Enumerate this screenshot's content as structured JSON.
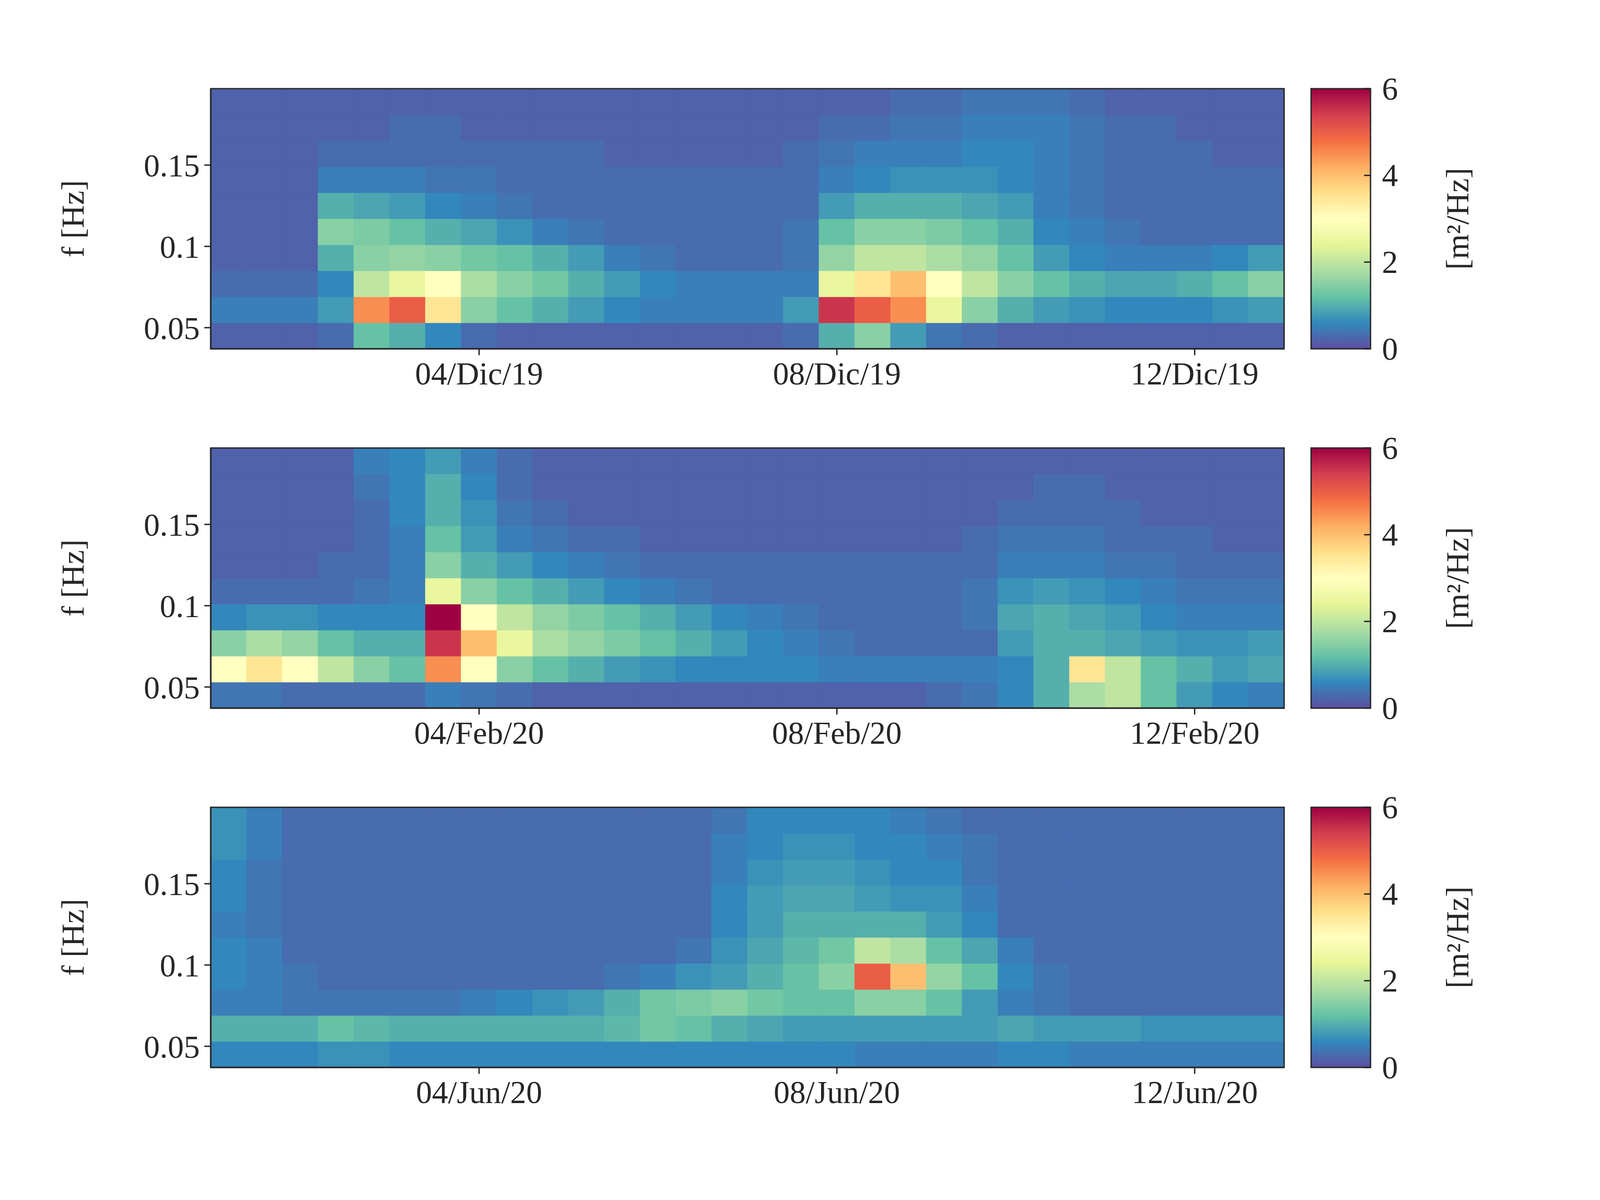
{
  "chart_data": [
    {
      "type": "heatmap",
      "y_label": "f [Hz]",
      "xlim": [
        1,
        13
      ],
      "xticks": [
        {
          "value": 4,
          "label": "04/Dic/19"
        },
        {
          "value": 8,
          "label": "08/Dic/19"
        },
        {
          "value": 12,
          "label": "12/Dic/19"
        }
      ],
      "ylim": [
        0.037,
        0.197
      ],
      "yticks": [
        0.05,
        0.1,
        0.15
      ],
      "x_edges": [
        1,
        1.4,
        1.8,
        2.2,
        2.6,
        3,
        3.4,
        3.8,
        4.2,
        4.6,
        5,
        5.4,
        5.8,
        6.2,
        6.6,
        7,
        7.4,
        7.8,
        8.2,
        8.6,
        9,
        9.4,
        9.8,
        10.2,
        10.6,
        11,
        11.4,
        11.8,
        12.2,
        12.6,
        13
      ],
      "y_edges": [
        0.037,
        0.053,
        0.069,
        0.085,
        0.101,
        0.117,
        0.133,
        0.149,
        0.165,
        0.181,
        0.197
      ],
      "z": [
        [
          0.2,
          0.2,
          0.2,
          0.3,
          1.2,
          1.0,
          0.6,
          0.3,
          0.2,
          0.2,
          0.2,
          0.2,
          0.2,
          0.2,
          0.2,
          0.2,
          0.3,
          1.0,
          1.5,
          0.8,
          0.4,
          0.3,
          0.2,
          0.2,
          0.2,
          0.2,
          0.2,
          0.2,
          0.2,
          0.2
        ],
        [
          0.5,
          0.5,
          0.5,
          0.8,
          4.5,
          5.0,
          3.5,
          1.5,
          1.2,
          1.0,
          0.8,
          0.6,
          0.5,
          0.5,
          0.5,
          0.5,
          0.8,
          5.5,
          5.0,
          4.5,
          2.5,
          1.5,
          1.0,
          0.8,
          0.7,
          0.6,
          0.6,
          0.6,
          0.7,
          0.8
        ],
        [
          0.3,
          0.3,
          0.3,
          0.6,
          2.0,
          2.5,
          3.0,
          1.8,
          1.5,
          1.3,
          1.0,
          0.8,
          0.6,
          0.5,
          0.5,
          0.5,
          0.5,
          2.5,
          3.5,
          4.0,
          3.0,
          2.0,
          1.5,
          1.2,
          1.0,
          0.9,
          0.9,
          1.0,
          1.2,
          1.5
        ],
        [
          0.2,
          0.2,
          0.2,
          1.0,
          1.5,
          1.6,
          1.5,
          1.3,
          1.2,
          1.0,
          0.8,
          0.5,
          0.4,
          0.3,
          0.3,
          0.3,
          0.4,
          1.6,
          2.0,
          2.0,
          1.8,
          1.6,
          1.2,
          0.8,
          0.6,
          0.5,
          0.5,
          0.5,
          0.6,
          0.8
        ],
        [
          0.2,
          0.2,
          0.2,
          1.5,
          1.4,
          1.2,
          1.0,
          0.9,
          0.7,
          0.5,
          0.4,
          0.3,
          0.3,
          0.3,
          0.3,
          0.3,
          0.4,
          1.2,
          1.5,
          1.5,
          1.4,
          1.2,
          1.0,
          0.6,
          0.5,
          0.4,
          0.3,
          0.3,
          0.3,
          0.3
        ],
        [
          0.2,
          0.2,
          0.2,
          1.0,
          0.9,
          0.8,
          0.6,
          0.5,
          0.4,
          0.3,
          0.3,
          0.3,
          0.3,
          0.3,
          0.3,
          0.3,
          0.3,
          0.8,
          1.0,
          1.0,
          1.0,
          0.9,
          0.8,
          0.5,
          0.4,
          0.3,
          0.3,
          0.3,
          0.3,
          0.3
        ],
        [
          0.2,
          0.2,
          0.2,
          0.5,
          0.5,
          0.5,
          0.4,
          0.4,
          0.3,
          0.3,
          0.3,
          0.3,
          0.3,
          0.3,
          0.3,
          0.3,
          0.3,
          0.5,
          0.6,
          0.7,
          0.7,
          0.7,
          0.6,
          0.5,
          0.4,
          0.3,
          0.3,
          0.3,
          0.3,
          0.3
        ],
        [
          0.2,
          0.2,
          0.2,
          0.3,
          0.3,
          0.3,
          0.3,
          0.3,
          0.3,
          0.3,
          0.3,
          0.2,
          0.2,
          0.2,
          0.2,
          0.2,
          0.3,
          0.4,
          0.5,
          0.5,
          0.5,
          0.6,
          0.6,
          0.5,
          0.4,
          0.3,
          0.3,
          0.3,
          0.2,
          0.2
        ],
        [
          0.2,
          0.2,
          0.2,
          0.2,
          0.2,
          0.3,
          0.3,
          0.2,
          0.2,
          0.2,
          0.2,
          0.2,
          0.2,
          0.2,
          0.2,
          0.2,
          0.2,
          0.3,
          0.3,
          0.4,
          0.4,
          0.5,
          0.5,
          0.5,
          0.4,
          0.3,
          0.3,
          0.2,
          0.2,
          0.2
        ],
        [
          0.2,
          0.2,
          0.2,
          0.2,
          0.2,
          0.2,
          0.2,
          0.2,
          0.2,
          0.2,
          0.2,
          0.2,
          0.2,
          0.2,
          0.2,
          0.2,
          0.2,
          0.2,
          0.2,
          0.3,
          0.3,
          0.4,
          0.4,
          0.4,
          0.3,
          0.2,
          0.2,
          0.2,
          0.2,
          0.2
        ]
      ],
      "colorbar": {
        "range": [
          0,
          6
        ],
        "ticks": [
          0,
          2,
          4,
          6
        ],
        "label": "[m²/Hz]",
        "colors": [
          "#5e4fa2",
          "#3288bd",
          "#66c2a5",
          "#abdda4",
          "#e6f598",
          "#ffffbf",
          "#fee08b",
          "#fdae61",
          "#f46d43",
          "#d53e4f",
          "#9e0142"
        ]
      }
    },
    {
      "type": "heatmap",
      "y_label": "f [Hz]",
      "xlim": [
        1,
        13
      ],
      "xticks": [
        {
          "value": 4,
          "label": "04/Feb/20"
        },
        {
          "value": 8,
          "label": "08/Feb/20"
        },
        {
          "value": 12,
          "label": "12/Feb/20"
        }
      ],
      "ylim": [
        0.037,
        0.197
      ],
      "yticks": [
        0.05,
        0.1,
        0.15
      ],
      "x_edges": [
        1,
        1.4,
        1.8,
        2.2,
        2.6,
        3,
        3.4,
        3.8,
        4.2,
        4.6,
        5,
        5.4,
        5.8,
        6.2,
        6.6,
        7,
        7.4,
        7.8,
        8.2,
        8.6,
        9,
        9.4,
        9.8,
        10.2,
        10.6,
        11,
        11.4,
        11.8,
        12.2,
        12.6,
        13
      ],
      "y_edges": [
        0.037,
        0.053,
        0.069,
        0.085,
        0.101,
        0.117,
        0.133,
        0.149,
        0.165,
        0.181,
        0.197
      ],
      "z": [
        [
          0.4,
          0.4,
          0.3,
          0.3,
          0.3,
          0.3,
          0.5,
          0.4,
          0.3,
          0.2,
          0.2,
          0.2,
          0.2,
          0.2,
          0.2,
          0.2,
          0.2,
          0.2,
          0.2,
          0.2,
          0.3,
          0.4,
          0.6,
          1.0,
          1.8,
          2.0,
          1.2,
          0.8,
          0.6,
          0.5
        ],
        [
          3.0,
          3.5,
          3.0,
          2.0,
          1.5,
          1.2,
          4.5,
          3.0,
          1.5,
          1.2,
          1.0,
          0.8,
          0.7,
          0.6,
          0.6,
          0.6,
          0.6,
          0.5,
          0.5,
          0.5,
          0.5,
          0.5,
          0.6,
          1.0,
          3.5,
          2.0,
          1.2,
          1.0,
          0.8,
          0.9
        ],
        [
          1.5,
          1.8,
          1.6,
          1.2,
          1.0,
          1.0,
          5.5,
          4.0,
          2.5,
          1.8,
          1.6,
          1.4,
          1.2,
          1.0,
          0.8,
          0.6,
          0.5,
          0.4,
          0.3,
          0.3,
          0.3,
          0.3,
          0.8,
          1.0,
          1.0,
          0.9,
          0.8,
          0.7,
          0.7,
          0.8
        ],
        [
          0.6,
          0.7,
          0.7,
          0.6,
          0.6,
          0.6,
          6.0,
          3.0,
          2.0,
          1.6,
          1.4,
          1.2,
          1.0,
          0.8,
          0.6,
          0.5,
          0.4,
          0.3,
          0.3,
          0.3,
          0.3,
          0.4,
          0.9,
          1.0,
          0.9,
          0.8,
          0.6,
          0.5,
          0.5,
          0.5
        ],
        [
          0.3,
          0.3,
          0.3,
          0.3,
          0.4,
          0.5,
          2.5,
          1.5,
          1.2,
          1.0,
          0.8,
          0.6,
          0.5,
          0.4,
          0.3,
          0.3,
          0.3,
          0.3,
          0.3,
          0.3,
          0.3,
          0.4,
          0.7,
          0.8,
          0.7,
          0.6,
          0.5,
          0.4,
          0.4,
          0.4
        ],
        [
          0.2,
          0.2,
          0.2,
          0.3,
          0.3,
          0.5,
          1.5,
          1.0,
          0.8,
          0.6,
          0.5,
          0.4,
          0.3,
          0.3,
          0.3,
          0.3,
          0.3,
          0.3,
          0.3,
          0.3,
          0.3,
          0.3,
          0.5,
          0.5,
          0.5,
          0.4,
          0.4,
          0.3,
          0.3,
          0.3
        ],
        [
          0.2,
          0.2,
          0.2,
          0.2,
          0.3,
          0.5,
          1.2,
          0.8,
          0.5,
          0.4,
          0.3,
          0.3,
          0.2,
          0.2,
          0.2,
          0.2,
          0.2,
          0.2,
          0.2,
          0.2,
          0.2,
          0.3,
          0.4,
          0.4,
          0.4,
          0.3,
          0.3,
          0.3,
          0.2,
          0.2
        ],
        [
          0.2,
          0.2,
          0.2,
          0.2,
          0.3,
          0.6,
          1.0,
          0.7,
          0.4,
          0.3,
          0.2,
          0.2,
          0.2,
          0.2,
          0.2,
          0.2,
          0.2,
          0.2,
          0.2,
          0.2,
          0.2,
          0.2,
          0.3,
          0.3,
          0.3,
          0.3,
          0.2,
          0.2,
          0.2,
          0.2
        ],
        [
          0.2,
          0.2,
          0.2,
          0.2,
          0.4,
          0.6,
          1.0,
          0.6,
          0.3,
          0.2,
          0.2,
          0.2,
          0.2,
          0.2,
          0.2,
          0.2,
          0.2,
          0.2,
          0.2,
          0.2,
          0.2,
          0.2,
          0.2,
          0.3,
          0.3,
          0.2,
          0.2,
          0.2,
          0.2,
          0.2
        ],
        [
          0.2,
          0.2,
          0.2,
          0.2,
          0.5,
          0.6,
          0.8,
          0.5,
          0.3,
          0.2,
          0.2,
          0.2,
          0.2,
          0.2,
          0.2,
          0.2,
          0.2,
          0.2,
          0.2,
          0.2,
          0.2,
          0.2,
          0.2,
          0.2,
          0.2,
          0.2,
          0.2,
          0.2,
          0.2,
          0.2
        ]
      ],
      "colorbar": {
        "range": [
          0,
          6
        ],
        "ticks": [
          0,
          2,
          4,
          6
        ],
        "label": "[m²/Hz]",
        "colors": [
          "#5e4fa2",
          "#3288bd",
          "#66c2a5",
          "#abdda4",
          "#e6f598",
          "#ffffbf",
          "#fee08b",
          "#fdae61",
          "#f46d43",
          "#d53e4f",
          "#9e0142"
        ]
      }
    },
    {
      "type": "heatmap",
      "y_label": "f [Hz]",
      "xlim": [
        1,
        13
      ],
      "xticks": [
        {
          "value": 4,
          "label": "04/Jun/20"
        },
        {
          "value": 8,
          "label": "08/Jun/20"
        },
        {
          "value": 12,
          "label": "12/Jun/20"
        }
      ],
      "ylim": [
        0.037,
        0.197
      ],
      "yticks": [
        0.05,
        0.1,
        0.15
      ],
      "x_edges": [
        1,
        1.4,
        1.8,
        2.2,
        2.6,
        3,
        3.4,
        3.8,
        4.2,
        4.6,
        5,
        5.4,
        5.8,
        6.2,
        6.6,
        7,
        7.4,
        7.8,
        8.2,
        8.6,
        9,
        9.4,
        9.8,
        10.2,
        10.6,
        11,
        11.4,
        11.8,
        12.2,
        12.6,
        13
      ],
      "y_edges": [
        0.037,
        0.053,
        0.069,
        0.085,
        0.101,
        0.117,
        0.133,
        0.149,
        0.165,
        0.181,
        0.197
      ],
      "z": [
        [
          0.6,
          0.6,
          0.6,
          0.7,
          0.7,
          0.6,
          0.6,
          0.6,
          0.6,
          0.6,
          0.6,
          0.6,
          0.6,
          0.6,
          0.6,
          0.6,
          0.6,
          0.6,
          0.5,
          0.5,
          0.5,
          0.5,
          0.6,
          0.6,
          0.5,
          0.5,
          0.5,
          0.5,
          0.5,
          0.5
        ],
        [
          1.0,
          1.0,
          1.0,
          1.2,
          1.1,
          1.0,
          1.0,
          1.0,
          1.0,
          1.0,
          1.0,
          1.1,
          1.3,
          1.2,
          1.0,
          0.9,
          0.8,
          0.8,
          0.8,
          0.8,
          0.8,
          0.8,
          0.9,
          0.8,
          0.8,
          0.8,
          0.7,
          0.7,
          0.7,
          0.7
        ],
        [
          0.5,
          0.5,
          0.4,
          0.4,
          0.4,
          0.4,
          0.4,
          0.5,
          0.6,
          0.7,
          0.8,
          1.0,
          1.3,
          1.4,
          1.5,
          1.3,
          1.2,
          1.2,
          1.5,
          1.5,
          1.2,
          0.8,
          0.5,
          0.4,
          0.3,
          0.3,
          0.3,
          0.3,
          0.3,
          0.3
        ],
        [
          0.6,
          0.5,
          0.4,
          0.3,
          0.3,
          0.3,
          0.3,
          0.3,
          0.3,
          0.3,
          0.3,
          0.4,
          0.5,
          0.7,
          0.8,
          1.0,
          1.2,
          1.5,
          5.0,
          4.0,
          1.6,
          1.2,
          0.6,
          0.4,
          0.3,
          0.3,
          0.3,
          0.3,
          0.3,
          0.3
        ],
        [
          0.6,
          0.5,
          0.3,
          0.3,
          0.3,
          0.3,
          0.3,
          0.3,
          0.3,
          0.3,
          0.3,
          0.3,
          0.3,
          0.4,
          0.7,
          0.9,
          1.1,
          1.3,
          2.0,
          1.8,
          1.2,
          0.9,
          0.5,
          0.3,
          0.3,
          0.3,
          0.3,
          0.3,
          0.3,
          0.3
        ],
        [
          0.5,
          0.4,
          0.3,
          0.3,
          0.3,
          0.3,
          0.3,
          0.3,
          0.3,
          0.3,
          0.3,
          0.3,
          0.3,
          0.3,
          0.6,
          0.8,
          1.0,
          1.0,
          1.0,
          1.0,
          0.8,
          0.6,
          0.3,
          0.3,
          0.3,
          0.3,
          0.3,
          0.3,
          0.3,
          0.3
        ],
        [
          0.6,
          0.4,
          0.3,
          0.3,
          0.3,
          0.3,
          0.3,
          0.3,
          0.3,
          0.3,
          0.3,
          0.3,
          0.3,
          0.3,
          0.6,
          0.8,
          0.9,
          0.9,
          0.8,
          0.7,
          0.7,
          0.5,
          0.3,
          0.3,
          0.3,
          0.3,
          0.3,
          0.3,
          0.3,
          0.3
        ],
        [
          0.6,
          0.4,
          0.3,
          0.3,
          0.3,
          0.3,
          0.3,
          0.3,
          0.3,
          0.3,
          0.3,
          0.3,
          0.3,
          0.3,
          0.5,
          0.7,
          0.8,
          0.8,
          0.7,
          0.6,
          0.6,
          0.4,
          0.3,
          0.3,
          0.3,
          0.3,
          0.3,
          0.3,
          0.3,
          0.3
        ],
        [
          0.7,
          0.5,
          0.3,
          0.3,
          0.3,
          0.3,
          0.3,
          0.3,
          0.3,
          0.3,
          0.3,
          0.3,
          0.3,
          0.3,
          0.5,
          0.6,
          0.7,
          0.7,
          0.6,
          0.6,
          0.5,
          0.4,
          0.3,
          0.3,
          0.3,
          0.3,
          0.3,
          0.3,
          0.3,
          0.3
        ],
        [
          0.7,
          0.5,
          0.3,
          0.3,
          0.3,
          0.3,
          0.3,
          0.3,
          0.3,
          0.3,
          0.3,
          0.3,
          0.3,
          0.3,
          0.4,
          0.6,
          0.6,
          0.6,
          0.6,
          0.5,
          0.4,
          0.3,
          0.3,
          0.3,
          0.3,
          0.3,
          0.3,
          0.3,
          0.3,
          0.3
        ]
      ],
      "colorbar": {
        "range": [
          0,
          6
        ],
        "ticks": [
          0,
          2,
          4,
          6
        ],
        "label": "[m²/Hz]",
        "colors": [
          "#5e4fa2",
          "#3288bd",
          "#66c2a5",
          "#abdda4",
          "#e6f598",
          "#ffffbf",
          "#fee08b",
          "#fdae61",
          "#f46d43",
          "#d53e4f",
          "#9e0142"
        ]
      }
    }
  ]
}
